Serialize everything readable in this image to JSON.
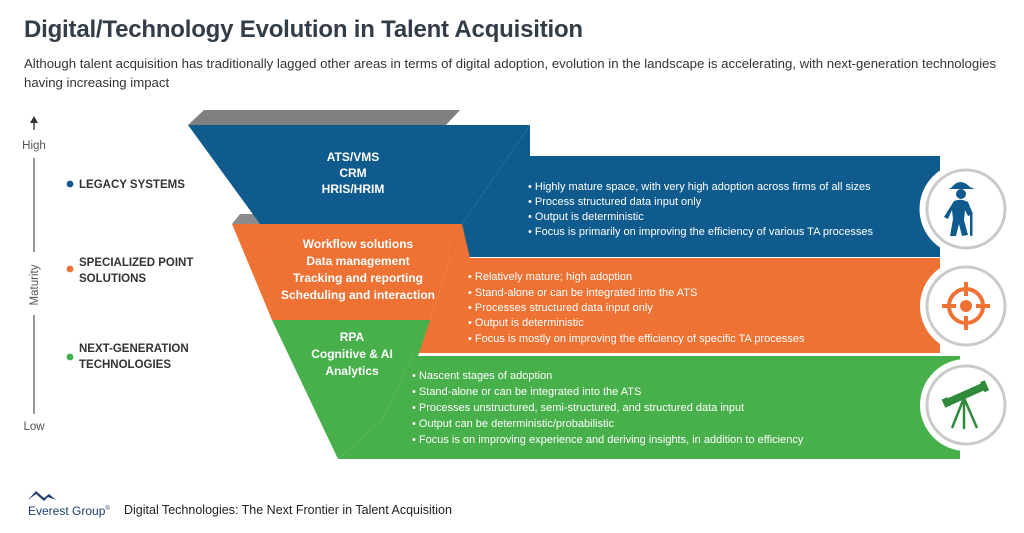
{
  "title": "Digital/Technology Evolution in Talent Acquisition",
  "subtitle": "Although talent acquisition has traditionally lagged other areas in terms of digital adoption, evolution in the landscape is accelerating, with next-generation technologies having increasing impact",
  "axis": {
    "label": "Maturity",
    "high": "High",
    "low": "Low"
  },
  "colors": {
    "legacy": "#0f5b8e",
    "specialized": "#ee7234",
    "nextgen": "#47b04b",
    "shadow": "#7f7f7f",
    "title": "#333d47"
  },
  "tiers": [
    {
      "category": "LEGACY SYSTEMS",
      "category_lines": [
        "LEGACY SYSTEMS"
      ],
      "funnel_items": [
        "ATS/VMS",
        "CRM",
        "HRIS/HRIM"
      ],
      "bullets": [
        "Highly mature space, with very high adoption across firms of all sizes",
        "Process structured data input only",
        "Output is deterministic",
        "Focus is primarily on improving the efficiency of various TA processes"
      ],
      "icon": "elderly-person-with-cane-icon"
    },
    {
      "category": "SPECIALIZED POINT SOLUTIONS",
      "category_lines": [
        "SPECIALIZED POINT",
        "SOLUTIONS"
      ],
      "funnel_items": [
        "Workflow solutions",
        "Data management",
        "Tracking and reporting",
        "Scheduling and interaction"
      ],
      "bullets": [
        "Relatively mature; high adoption",
        "Stand-alone or can be integrated into the ATS",
        "Processes structured data input only",
        "Output is deterministic",
        "Focus is mostly on improving the efficiency of specific TA processes"
      ],
      "icon": "crosshair-target-icon"
    },
    {
      "category": "NEXT-GENERATION TECHNOLOGIES",
      "category_lines": [
        "NEXT-GENERATION",
        "TECHNOLOGIES"
      ],
      "funnel_items": [
        "RPA",
        "Cognitive & AI",
        "Analytics"
      ],
      "bullets": [
        "Nascent stages of adoption",
        "Stand-alone or can be integrated into the ATS",
        "Processes unstructured, semi-structured, and structured data input",
        "Output can be deterministic/probabilistic",
        "Focus is on improving experience and deriving insights, in addition to efficiency"
      ],
      "icon": "telescope-icon"
    }
  ],
  "footer": {
    "brand": "Everest Group",
    "brand_mark": "®",
    "text": "Digital Technologies: The Next Frontier in Talent Acquisition"
  }
}
